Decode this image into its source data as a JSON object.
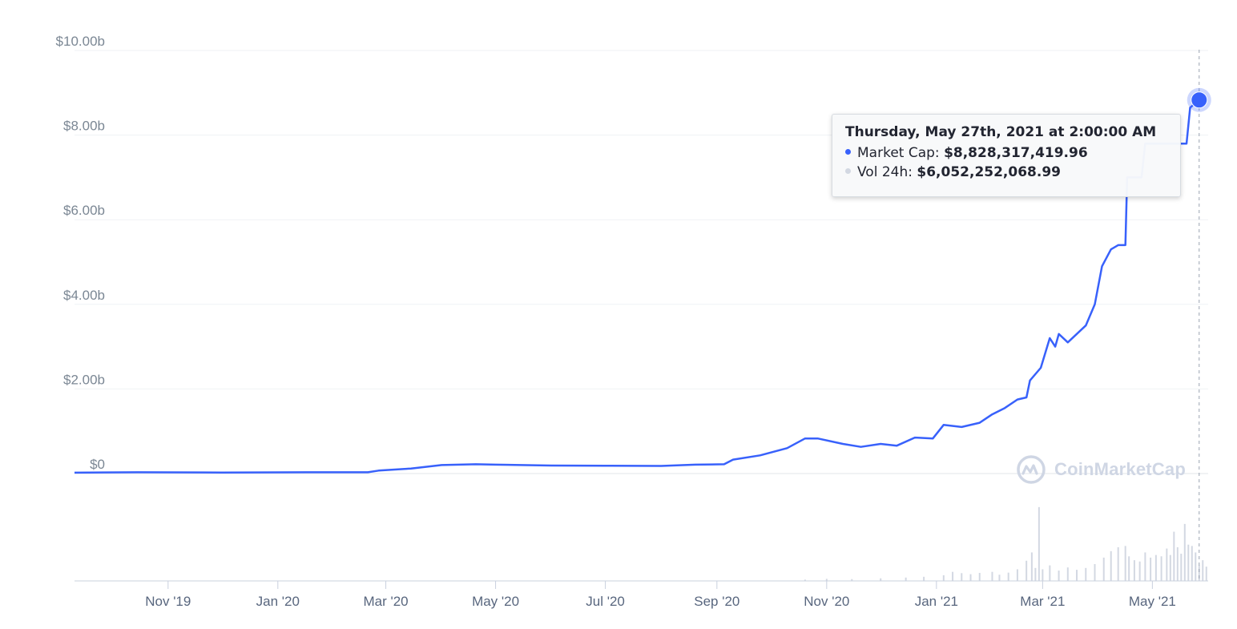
{
  "chart_data": {
    "type": "line",
    "title": "",
    "xlabel": "",
    "ylabel": "",
    "ylim": [
      0,
      10000000000
    ],
    "y_ticks": [
      {
        "value": 0,
        "label": "$0"
      },
      {
        "value": 2000000000,
        "label": "$2.00b"
      },
      {
        "value": 4000000000,
        "label": "$4.00b"
      },
      {
        "value": 6000000000,
        "label": "$6.00b"
      },
      {
        "value": 8000000000,
        "label": "$8.00b"
      },
      {
        "value": 10000000000,
        "label": "$10.00b"
      }
    ],
    "x_range": [
      "2019-09-10",
      "2021-06-01"
    ],
    "x_ticks": [
      {
        "date": "2019-11-01",
        "label": "Nov '19"
      },
      {
        "date": "2020-01-01",
        "label": "Jan '20"
      },
      {
        "date": "2020-03-01",
        "label": "Mar '20"
      },
      {
        "date": "2020-05-01",
        "label": "May '20"
      },
      {
        "date": "2020-07-01",
        "label": "Jul '20"
      },
      {
        "date": "2020-09-01",
        "label": "Sep '20"
      },
      {
        "date": "2020-11-01",
        "label": "Nov '20"
      },
      {
        "date": "2021-01-01",
        "label": "Jan '21"
      },
      {
        "date": "2021-03-01",
        "label": "Mar '21"
      },
      {
        "date": "2021-05-01",
        "label": "May '21"
      }
    ],
    "grid": true,
    "series": [
      {
        "name": "Market Cap",
        "color": "#3861fb",
        "points": [
          [
            "2019-09-10",
            20000000
          ],
          [
            "2019-10-15",
            30000000
          ],
          [
            "2019-12-01",
            25000000
          ],
          [
            "2020-01-20",
            30000000
          ],
          [
            "2020-02-20",
            30000000
          ],
          [
            "2020-02-26",
            70000000
          ],
          [
            "2020-03-15",
            120000000
          ],
          [
            "2020-04-01",
            200000000
          ],
          [
            "2020-04-20",
            220000000
          ],
          [
            "2020-05-01",
            210000000
          ],
          [
            "2020-06-01",
            190000000
          ],
          [
            "2020-07-01",
            185000000
          ],
          [
            "2020-08-01",
            180000000
          ],
          [
            "2020-08-20",
            210000000
          ],
          [
            "2020-09-05",
            220000000
          ],
          [
            "2020-09-10",
            330000000
          ],
          [
            "2020-09-25",
            430000000
          ],
          [
            "2020-10-10",
            600000000
          ],
          [
            "2020-10-20",
            830000000
          ],
          [
            "2020-10-27",
            830000000
          ],
          [
            "2020-11-10",
            700000000
          ],
          [
            "2020-11-20",
            630000000
          ],
          [
            "2020-12-01",
            700000000
          ],
          [
            "2020-12-10",
            660000000
          ],
          [
            "2020-12-20",
            850000000
          ],
          [
            "2020-12-30",
            830000000
          ],
          [
            "2021-01-05",
            1150000000
          ],
          [
            "2021-01-15",
            1100000000
          ],
          [
            "2021-01-25",
            1200000000
          ],
          [
            "2021-02-01",
            1400000000
          ],
          [
            "2021-02-08",
            1550000000
          ],
          [
            "2021-02-15",
            1750000000
          ],
          [
            "2021-02-20",
            1800000000
          ],
          [
            "2021-02-22",
            2200000000
          ],
          [
            "2021-02-28",
            2500000000
          ],
          [
            "2021-03-05",
            3200000000
          ],
          [
            "2021-03-08",
            3000000000
          ],
          [
            "2021-03-10",
            3300000000
          ],
          [
            "2021-03-15",
            3100000000
          ],
          [
            "2021-03-20",
            3300000000
          ],
          [
            "2021-03-25",
            3500000000
          ],
          [
            "2021-03-30",
            4000000000
          ],
          [
            "2021-04-03",
            4900000000
          ],
          [
            "2021-04-08",
            5300000000
          ],
          [
            "2021-04-12",
            5400000000
          ],
          [
            "2021-04-16",
            5400000000
          ],
          [
            "2021-04-17",
            7000000000
          ],
          [
            "2021-04-25",
            7000000000
          ],
          [
            "2021-04-27",
            7800000000
          ],
          [
            "2021-05-20",
            7800000000
          ],
          [
            "2021-05-22",
            8650000000
          ],
          [
            "2021-05-27",
            8830000000
          ]
        ]
      },
      {
        "name": "Vol 24h",
        "color": "#d3d8e2"
      }
    ],
    "volume_ylim": [
      0,
      30000000000
    ],
    "volume": [
      [
        "2020-10-20",
        500000000
      ],
      [
        "2020-11-01",
        800000000
      ],
      [
        "2020-11-15",
        700000000
      ],
      [
        "2020-12-01",
        1000000000
      ],
      [
        "2020-12-15",
        1300000000
      ],
      [
        "2020-12-25",
        1600000000
      ],
      [
        "2021-01-05",
        2200000000
      ],
      [
        "2021-01-10",
        3500000000
      ],
      [
        "2021-01-15",
        3000000000
      ],
      [
        "2021-01-20",
        2600000000
      ],
      [
        "2021-01-25",
        3100000000
      ],
      [
        "2021-02-01",
        3500000000
      ],
      [
        "2021-02-05",
        2400000000
      ],
      [
        "2021-02-10",
        3200000000
      ],
      [
        "2021-02-15",
        4500000000
      ],
      [
        "2021-02-20",
        7800000000
      ],
      [
        "2021-02-23",
        11000000000
      ],
      [
        "2021-02-25",
        5000000000
      ],
      [
        "2021-02-27",
        28500000000
      ],
      [
        "2021-03-01",
        4500000000
      ],
      [
        "2021-03-05",
        6000000000
      ],
      [
        "2021-03-10",
        4000000000
      ],
      [
        "2021-03-15",
        5200000000
      ],
      [
        "2021-03-20",
        4300000000
      ],
      [
        "2021-03-25",
        5000000000
      ],
      [
        "2021-03-30",
        6500000000
      ],
      [
        "2021-04-04",
        9000000000
      ],
      [
        "2021-04-08",
        11500000000
      ],
      [
        "2021-04-12",
        13000000000
      ],
      [
        "2021-04-16",
        13500000000
      ],
      [
        "2021-04-18",
        9500000000
      ],
      [
        "2021-04-21",
        8000000000
      ],
      [
        "2021-04-24",
        7500000000
      ],
      [
        "2021-04-27",
        11000000000
      ],
      [
        "2021-04-30",
        9000000000
      ],
      [
        "2021-05-03",
        10000000000
      ],
      [
        "2021-05-06",
        9500000000
      ],
      [
        "2021-05-09",
        12500000000
      ],
      [
        "2021-05-11",
        10000000000
      ],
      [
        "2021-05-13",
        19000000000
      ],
      [
        "2021-05-15",
        13000000000
      ],
      [
        "2021-05-17",
        10500000000
      ],
      [
        "2021-05-19",
        22000000000
      ],
      [
        "2021-05-21",
        14000000000
      ],
      [
        "2021-05-23",
        13500000000
      ],
      [
        "2021-05-25",
        11000000000
      ],
      [
        "2021-05-27",
        6050000000
      ],
      [
        "2021-05-29",
        8000000000
      ],
      [
        "2021-05-31",
        5500000000
      ]
    ]
  },
  "tooltip": {
    "title": "Thursday, May 27th, 2021 at 2:00:00 AM",
    "rows": [
      {
        "label": "Market Cap:",
        "value": "$8,828,317,419.96",
        "color": "#3861fb"
      },
      {
        "label": "Vol 24h:",
        "value": "$6,052,252,068.99",
        "color": "#d3d8e2"
      }
    ]
  },
  "hover": {
    "date": "2021-05-27",
    "value": 8830000000
  },
  "watermark": {
    "text": "CoinMarketCap"
  }
}
